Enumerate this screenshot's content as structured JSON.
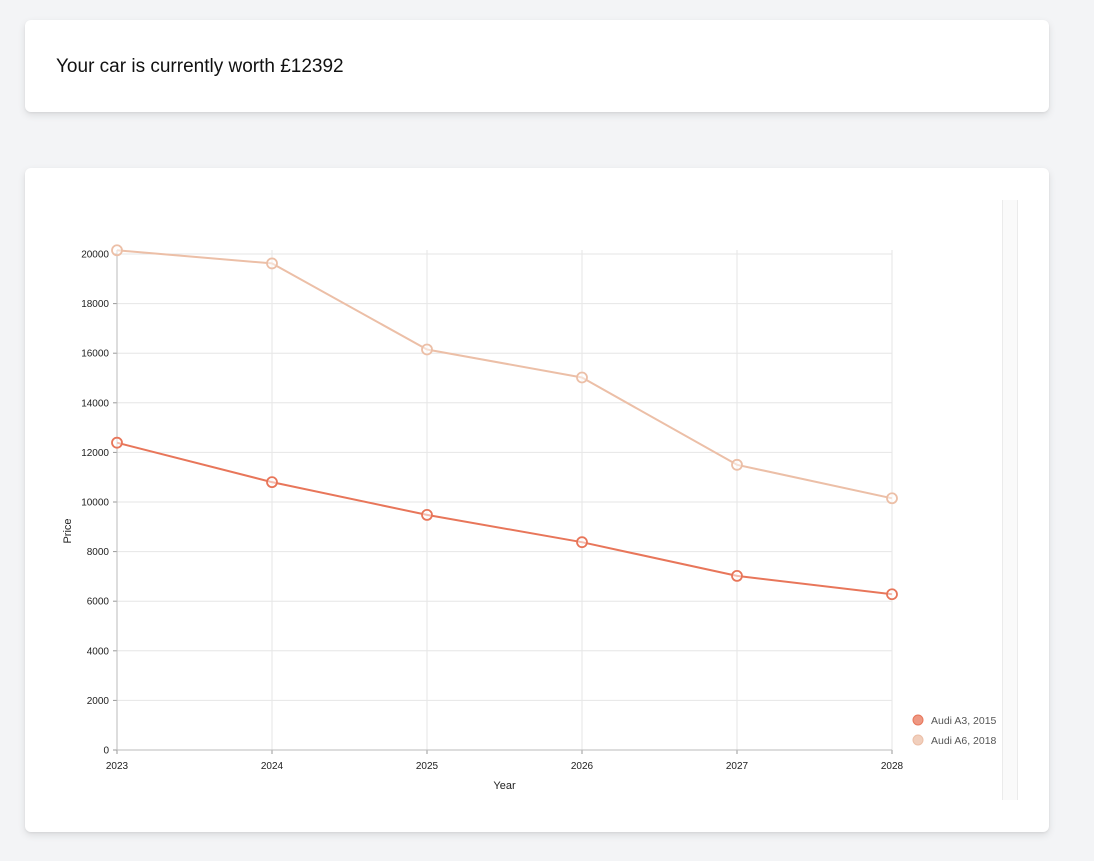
{
  "header": {
    "text": "Your car is currently worth £12392"
  },
  "chart_data": {
    "type": "line",
    "title": "",
    "xlabel": "Year",
    "ylabel": "Price",
    "x": [
      2023,
      2024,
      2025,
      2026,
      2027,
      2028
    ],
    "x_tick_labels": [
      "2023",
      "2024",
      "2025",
      "2026",
      "2027",
      "2028"
    ],
    "ylim": [
      0,
      20000
    ],
    "y_ticks": [
      0,
      2000,
      4000,
      6000,
      8000,
      10000,
      12000,
      14000,
      16000,
      18000,
      20000
    ],
    "y_tick_labels": [
      "0",
      "2000",
      "4000",
      "6000",
      "8000",
      "10000",
      "12000",
      "14000",
      "16000",
      "18000",
      "20000"
    ],
    "grid": true,
    "legend_position": "bottom-right",
    "series": [
      {
        "name": "Audi A3, 2015",
        "color": "#e8765a",
        "values": [
          12392,
          10800,
          9480,
          8380,
          7020,
          6280
        ]
      },
      {
        "name": "Audi A6, 2018",
        "color": "#ecbfa7",
        "values": [
          20150,
          19620,
          16150,
          15020,
          11500,
          10150
        ]
      }
    ]
  }
}
